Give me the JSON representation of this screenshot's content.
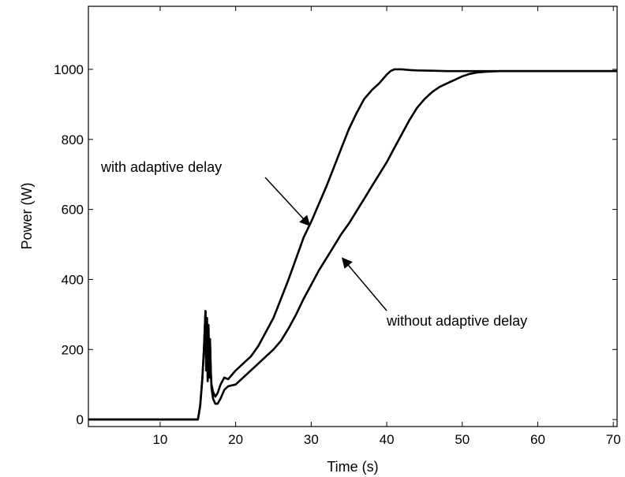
{
  "chart_data": {
    "type": "line",
    "title": "",
    "xlabel": "Time (s)",
    "ylabel": "Power (W)",
    "xlim": [
      0.5,
      70.5
    ],
    "ylim": [
      -20,
      1180
    ],
    "x_ticks": [
      10,
      20,
      30,
      40,
      50,
      60,
      70
    ],
    "y_ticks": [
      0,
      200,
      400,
      600,
      800,
      1000
    ],
    "grid": false,
    "legend": "none",
    "line_color": "#000000",
    "series": [
      {
        "x": [
          0.5,
          15.0,
          15.3,
          15.6,
          15.8,
          16.0,
          16.1,
          16.2,
          16.3,
          16.4,
          16.5,
          16.6,
          16.7,
          16.8,
          17.0,
          17.3,
          17.6,
          18.0,
          18.5,
          19.0,
          20.0,
          21.0,
          22.0,
          23.0,
          24.0,
          25.0,
          26.0,
          27.0,
          28.0,
          29.0,
          30.0,
          31.0,
          32.0,
          33.0,
          34.0,
          35.0,
          36.0,
          37.0,
          38.0,
          39.0,
          40.0,
          40.5,
          41.0,
          42.0,
          43.0,
          44.0,
          46.0,
          48.0,
          50.0,
          55.0,
          60.0,
          65.0,
          70.0,
          70.5
        ],
        "y": [
          0,
          0,
          40,
          120,
          200,
          310,
          140,
          290,
          110,
          270,
          120,
          230,
          140,
          100,
          80,
          65,
          75,
          100,
          120,
          115,
          140,
          160,
          180,
          210,
          250,
          290,
          345,
          400,
          460,
          520,
          565,
          615,
          665,
          720,
          775,
          830,
          875,
          915,
          940,
          960,
          985,
          995,
          1000,
          1000,
          998,
          997,
          996,
          995,
          995,
          995,
          995,
          995,
          995,
          995
        ]
      },
      {
        "x": [
          0.5,
          15.0,
          15.3,
          15.6,
          15.8,
          16.0,
          16.1,
          16.2,
          16.3,
          16.4,
          16.5,
          16.6,
          16.7,
          16.8,
          17.0,
          17.3,
          17.6,
          18.0,
          18.5,
          19.0,
          20.0,
          21.0,
          22.0,
          23.0,
          24.0,
          25.0,
          26.0,
          27.0,
          28.0,
          29.0,
          30.0,
          31.0,
          32.0,
          33.0,
          34.0,
          35.0,
          36.0,
          37.0,
          38.0,
          39.0,
          40.0,
          41.0,
          42.0,
          43.0,
          44.0,
          45.0,
          46.0,
          47.0,
          48.0,
          49.0,
          50.0,
          51.0,
          52.0,
          53.0,
          54.0,
          55.0,
          56.0,
          60.0,
          65.0,
          70.0,
          70.5
        ],
        "y": [
          0,
          0,
          40,
          120,
          200,
          310,
          140,
          290,
          110,
          270,
          120,
          230,
          140,
          90,
          60,
          45,
          45,
          60,
          85,
          95,
          100,
          120,
          140,
          160,
          180,
          200,
          225,
          260,
          300,
          345,
          385,
          425,
          460,
          495,
          530,
          560,
          595,
          630,
          665,
          700,
          735,
          775,
          815,
          855,
          890,
          915,
          935,
          950,
          960,
          970,
          980,
          987,
          991,
          993,
          994,
          995,
          995,
          995,
          995,
          995,
          995
        ]
      }
    ],
    "annotations": [
      {
        "text": "with adaptive delay",
        "x": 30,
        "y": 545
      },
      {
        "text": "without adaptive delay",
        "x": 33.5,
        "y": 470
      }
    ]
  }
}
